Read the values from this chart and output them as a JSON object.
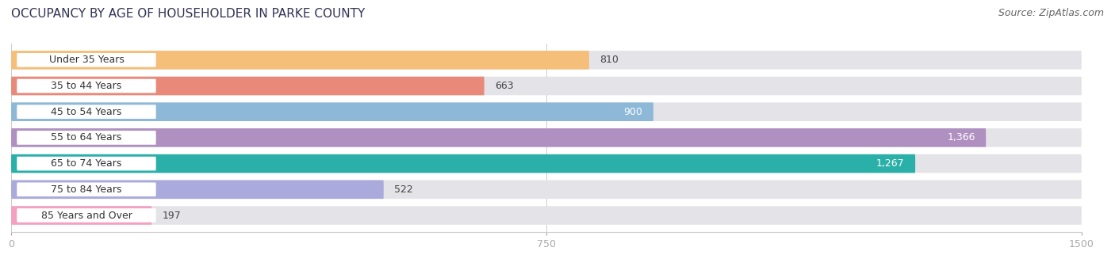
{
  "title": "OCCUPANCY BY AGE OF HOUSEHOLDER IN PARKE COUNTY",
  "source": "Source: ZipAtlas.com",
  "categories": [
    "Under 35 Years",
    "35 to 44 Years",
    "45 to 54 Years",
    "55 to 64 Years",
    "65 to 74 Years",
    "75 to 84 Years",
    "85 Years and Over"
  ],
  "values": [
    810,
    663,
    900,
    1366,
    1267,
    522,
    197
  ],
  "bar_colors": [
    "#f5bf7a",
    "#e8897a",
    "#8db8d8",
    "#b090c0",
    "#2ab0a8",
    "#aaaadc",
    "#f5a0c0"
  ],
  "bar_bg_color": "#e4e4e8",
  "xlim_max": 1500,
  "xticks": [
    0,
    750,
    1500
  ],
  "figsize": [
    14.06,
    3.41
  ],
  "dpi": 100,
  "title_fontsize": 11,
  "source_fontsize": 9,
  "bar_label_fontsize": 9,
  "category_fontsize": 9,
  "value_label_color_inside": "#ffffff",
  "value_label_color_outside": "#444444",
  "inside_threshold": 820
}
